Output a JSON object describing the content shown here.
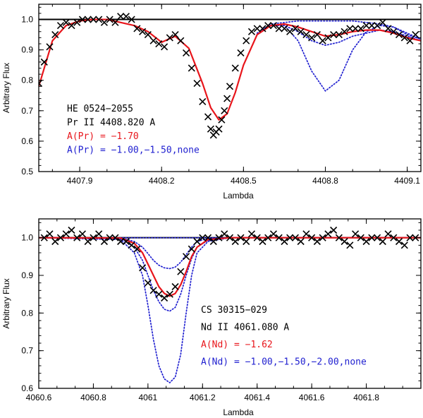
{
  "chart_data": [
    {
      "type": "line",
      "xlabel": "Lambda",
      "ylabel": "Arbitrary Flux",
      "xlim": [
        4407.75,
        4409.15
      ],
      "ylim": [
        0.5,
        1.05
      ],
      "xticks": [
        {
          "value": 4407.9,
          "label": "4407.9"
        },
        {
          "value": 4408.2,
          "label": "4408.2"
        },
        {
          "value": 4408.5,
          "label": "4408.5"
        },
        {
          "value": 4408.8,
          "label": "4408.8"
        },
        {
          "value": 4409.1,
          "label": "4409.1"
        }
      ],
      "yticks": [
        {
          "value": 0.5,
          "label": "0.5"
        },
        {
          "value": 0.6,
          "label": "0.6"
        },
        {
          "value": 0.7,
          "label": "0.7"
        },
        {
          "value": 0.8,
          "label": "0.8"
        },
        {
          "value": 0.9,
          "label": "0.9"
        },
        {
          "value": 1.0,
          "label": "1.0"
        }
      ],
      "annotations": [
        {
          "text": "HE 0524−2055",
          "color": "#000000"
        },
        {
          "text": "Pr II 4408.820 A",
          "color": "#000000"
        },
        {
          "text": "A(Pr) = −1.70",
          "color": "#e8151b"
        },
        {
          "text": "A(Pr) = −1.00,−1.50,none",
          "color": "#1f1fd0"
        }
      ],
      "reference_line": 1.0,
      "colors": {
        "observed": "#000000",
        "fit": "#e8151b",
        "comparison": "#1f1fd0",
        "reference": "#000000"
      },
      "observed": {
        "x": [
          4407.75,
          4407.77,
          4407.79,
          4407.81,
          4407.83,
          4407.85,
          4407.87,
          4407.89,
          4407.91,
          4407.93,
          4407.95,
          4407.97,
          4407.99,
          4408.01,
          4408.03,
          4408.05,
          4408.07,
          4408.09,
          4408.11,
          4408.13,
          4408.15,
          4408.17,
          4408.19,
          4408.21,
          4408.23,
          4408.25,
          4408.27,
          4408.29,
          4408.31,
          4408.33,
          4408.35,
          4408.37,
          4408.38,
          4408.39,
          4408.4,
          4408.41,
          4408.42,
          4408.43,
          4408.44,
          4408.45,
          4408.47,
          4408.49,
          4408.51,
          4408.53,
          4408.55,
          4408.57,
          4408.59,
          4408.61,
          4408.63,
          4408.65,
          4408.67,
          4408.69,
          4408.71,
          4408.73,
          4408.75,
          4408.77,
          4408.79,
          4408.81,
          4408.83,
          4408.85,
          4408.87,
          4408.89,
          4408.91,
          4408.93,
          4408.95,
          4408.97,
          4408.99,
          4409.01,
          4409.03,
          4409.05,
          4409.07,
          4409.09,
          4409.11,
          4409.13
        ],
        "y": [
          0.79,
          0.86,
          0.91,
          0.95,
          0.98,
          0.99,
          0.98,
          0.99,
          1.0,
          1.0,
          1.0,
          1.0,
          0.99,
          1.0,
          0.99,
          1.01,
          1.01,
          1.0,
          0.97,
          0.96,
          0.95,
          0.93,
          0.92,
          0.91,
          0.94,
          0.95,
          0.93,
          0.89,
          0.84,
          0.79,
          0.73,
          0.68,
          0.64,
          0.62,
          0.63,
          0.64,
          0.67,
          0.7,
          0.74,
          0.78,
          0.84,
          0.89,
          0.93,
          0.96,
          0.97,
          0.97,
          0.98,
          0.98,
          0.97,
          0.97,
          0.96,
          0.97,
          0.96,
          0.95,
          0.94,
          0.95,
          0.93,
          0.94,
          0.95,
          0.95,
          0.96,
          0.97,
          0.97,
          0.97,
          0.98,
          0.98,
          0.98,
          0.99,
          0.97,
          0.96,
          0.95,
          0.94,
          0.93,
          0.95
        ]
      },
      "fit": {
        "x": [
          4407.75,
          4407.8,
          4407.85,
          4407.9,
          4407.95,
          4408.0,
          4408.05,
          4408.1,
          4408.15,
          4408.2,
          4408.25,
          4408.3,
          4408.35,
          4408.38,
          4408.41,
          4408.44,
          4408.47,
          4408.5,
          4408.55,
          4408.6,
          4408.65,
          4408.7,
          4408.75,
          4408.8,
          4408.85,
          4408.9,
          4408.95,
          4409.0,
          4409.05,
          4409.1,
          4409.15
        ],
        "y": [
          0.78,
          0.93,
          0.98,
          0.995,
          1.0,
          1.0,
          0.99,
          0.98,
          0.96,
          0.925,
          0.945,
          0.905,
          0.79,
          0.71,
          0.67,
          0.69,
          0.76,
          0.85,
          0.95,
          0.98,
          0.985,
          0.975,
          0.96,
          0.945,
          0.95,
          0.96,
          0.965,
          0.965,
          0.955,
          0.94,
          0.93
        ]
      },
      "comparison_models": [
        {
          "x": [
            4408.55,
            4408.6,
            4408.65,
            4408.7,
            4408.75,
            4408.8,
            4408.85,
            4408.9,
            4408.95,
            4409.0,
            4409.05,
            4409.1,
            4409.15
          ],
          "y": [
            0.95,
            0.98,
            0.98,
            0.93,
            0.83,
            0.765,
            0.8,
            0.9,
            0.96,
            0.98,
            0.975,
            0.95,
            0.935
          ]
        },
        {
          "x": [
            4408.55,
            4408.6,
            4408.65,
            4408.7,
            4408.75,
            4408.8,
            4408.85,
            4408.9,
            4408.95,
            4409.0,
            4409.05,
            4409.1,
            4409.15
          ],
          "y": [
            0.95,
            0.98,
            0.98,
            0.96,
            0.93,
            0.915,
            0.925,
            0.945,
            0.955,
            0.965,
            0.96,
            0.945,
            0.93
          ]
        },
        {
          "x": [
            4408.55,
            4408.6,
            4408.65,
            4408.7,
            4408.75,
            4408.8,
            4408.85,
            4408.9,
            4408.95,
            4409.0,
            4409.05,
            4409.1,
            4409.15
          ],
          "y": [
            0.955,
            0.985,
            0.99,
            0.995,
            0.995,
            0.995,
            0.995,
            0.995,
            0.99,
            0.985,
            0.975,
            0.955,
            0.935
          ]
        }
      ]
    },
    {
      "type": "line",
      "xlabel": "Lambda",
      "ylabel": "Arbitrary Flux",
      "xlim": [
        4060.6,
        4062.0
      ],
      "ylim": [
        0.6,
        1.05
      ],
      "xticks": [
        {
          "value": 4060.6,
          "label": "4060.6"
        },
        {
          "value": 4060.8,
          "label": "4060.8"
        },
        {
          "value": 4061.0,
          "label": "4061"
        },
        {
          "value": 4061.2,
          "label": "4061.2"
        },
        {
          "value": 4061.4,
          "label": "4061.4"
        },
        {
          "value": 4061.6,
          "label": "4061.6"
        },
        {
          "value": 4061.8,
          "label": "4061.8"
        }
      ],
      "yticks": [
        {
          "value": 0.6,
          "label": "0.6"
        },
        {
          "value": 0.7,
          "label": "0.7"
        },
        {
          "value": 0.8,
          "label": "0.8"
        },
        {
          "value": 0.9,
          "label": "0.9"
        },
        {
          "value": 1.0,
          "label": "1.0"
        }
      ],
      "annotations": [
        {
          "text": "CS 30315−029",
          "color": "#000000"
        },
        {
          "text": "Nd II 4061.080 A",
          "color": "#000000"
        },
        {
          "text": "A(Nd) = −1.62",
          "color": "#e8151b"
        },
        {
          "text": "A(Nd) = −1.00,−1.50,−2.00,none",
          "color": "#1f1fd0"
        }
      ],
      "reference_line": 1.0,
      "colors": {
        "observed": "#000000",
        "fit": "#e8151b",
        "comparison": "#1f1fd0",
        "reference": "#000000"
      },
      "observed": {
        "x": [
          4060.62,
          4060.64,
          4060.66,
          4060.68,
          4060.7,
          4060.72,
          4060.74,
          4060.76,
          4060.78,
          4060.8,
          4060.82,
          4060.84,
          4060.86,
          4060.88,
          4060.9,
          4060.92,
          4060.94,
          4060.96,
          4060.98,
          4061.0,
          4061.02,
          4061.04,
          4061.06,
          4061.08,
          4061.1,
          4061.12,
          4061.14,
          4061.16,
          4061.18,
          4061.2,
          4061.22,
          4061.24,
          4061.26,
          4061.28,
          4061.3,
          4061.32,
          4061.34,
          4061.36,
          4061.38,
          4061.4,
          4061.42,
          4061.44,
          4061.46,
          4061.48,
          4061.5,
          4061.52,
          4061.54,
          4061.56,
          4061.58,
          4061.6,
          4061.62,
          4061.64,
          4061.66,
          4061.68,
          4061.7,
          4061.72,
          4061.74,
          4061.76,
          4061.78,
          4061.8,
          4061.82,
          4061.84,
          4061.86,
          4061.88,
          4061.9,
          4061.92,
          4061.94,
          4061.96,
          4061.98
        ],
        "y": [
          1.0,
          1.01,
          0.99,
          1.0,
          1.01,
          1.02,
          1.0,
          1.01,
          0.99,
          1.0,
          1.01,
          0.99,
          1.0,
          1.0,
          0.99,
          0.99,
          0.98,
          0.97,
          0.92,
          0.88,
          0.86,
          0.85,
          0.84,
          0.85,
          0.87,
          0.91,
          0.95,
          0.97,
          0.99,
          1.0,
          1.0,
          0.99,
          1.0,
          1.01,
          1.0,
          0.99,
          1.0,
          0.99,
          1.01,
          1.0,
          0.99,
          1.0,
          1.01,
          1.0,
          0.99,
          1.0,
          1.0,
          0.99,
          1.01,
          1.0,
          0.99,
          1.0,
          1.01,
          1.02,
          1.0,
          0.99,
          0.98,
          1.01,
          1.0,
          0.99,
          1.0,
          1.0,
          0.99,
          1.01,
          1.0,
          0.99,
          0.98,
          1.0,
          1.0
        ]
      },
      "fit": {
        "x": [
          4060.6,
          4060.9,
          4060.95,
          4060.98,
          4061.0,
          4061.02,
          4061.04,
          4061.06,
          4061.08,
          4061.1,
          4061.12,
          4061.14,
          4061.16,
          4061.18,
          4061.22,
          4061.3,
          4062.0
        ],
        "y": [
          1.0,
          0.999,
          0.985,
          0.96,
          0.93,
          0.9,
          0.87,
          0.852,
          0.845,
          0.852,
          0.875,
          0.91,
          0.95,
          0.975,
          0.995,
          1.0,
          1.0
        ]
      },
      "comparison_models": [
        {
          "x": [
            4060.6,
            4060.9,
            4060.95,
            4060.98,
            4061.0,
            4061.02,
            4061.04,
            4061.06,
            4061.08,
            4061.1,
            4061.12,
            4061.14,
            4061.16,
            4061.18,
            4061.22,
            4061.3,
            4062.0
          ],
          "y": [
            1.0,
            0.995,
            0.96,
            0.9,
            0.82,
            0.73,
            0.66,
            0.625,
            0.615,
            0.63,
            0.69,
            0.8,
            0.9,
            0.96,
            0.99,
            1.0,
            1.0
          ]
        },
        {
          "x": [
            4060.6,
            4060.9,
            4060.95,
            4060.98,
            4061.0,
            4061.02,
            4061.04,
            4061.06,
            4061.08,
            4061.1,
            4061.12,
            4061.14,
            4061.16,
            4061.18,
            4061.22,
            4061.3,
            4062.0
          ],
          "y": [
            1.0,
            0.998,
            0.975,
            0.94,
            0.9,
            0.86,
            0.83,
            0.81,
            0.805,
            0.815,
            0.85,
            0.9,
            0.945,
            0.975,
            0.993,
            1.0,
            1.0
          ]
        },
        {
          "x": [
            4060.6,
            4060.9,
            4060.95,
            4060.98,
            4061.0,
            4061.02,
            4061.04,
            4061.06,
            4061.08,
            4061.1,
            4061.12,
            4061.14,
            4061.16,
            4061.18,
            4061.22,
            4061.3,
            4062.0
          ],
          "y": [
            1.0,
            0.999,
            0.99,
            0.975,
            0.958,
            0.94,
            0.927,
            0.92,
            0.918,
            0.922,
            0.935,
            0.955,
            0.975,
            0.99,
            0.998,
            1.0,
            1.0
          ]
        },
        {
          "x": [
            4060.6,
            4062.0
          ],
          "y": [
            1.0,
            1.0
          ]
        }
      ]
    }
  ]
}
